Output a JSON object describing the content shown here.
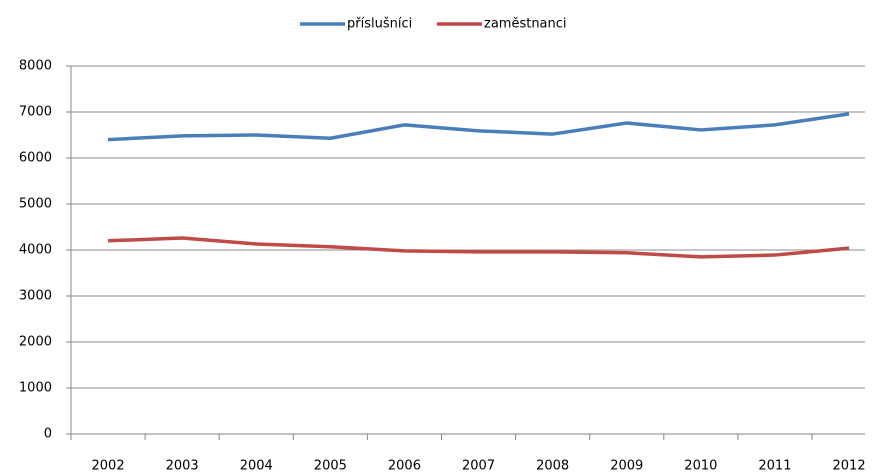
{
  "chart_data": {
    "type": "line",
    "categories": [
      "2002",
      "2003",
      "2004",
      "2005",
      "2006",
      "2007",
      "2008",
      "2009",
      "2010",
      "2011",
      "2012"
    ],
    "series": [
      {
        "name": "příslušníci",
        "color": "#4a7ebb",
        "values": [
          6400,
          6480,
          6500,
          6430,
          6720,
          6590,
          6520,
          6760,
          6610,
          6720,
          6960
        ]
      },
      {
        "name": "zaměstnanci",
        "color": "#be4b48",
        "values": [
          4200,
          4260,
          4130,
          4070,
          3980,
          3960,
          3960,
          3940,
          3850,
          3890,
          4040
        ]
      }
    ],
    "ylim": [
      0,
      8000
    ],
    "yticks": [
      0,
      1000,
      2000,
      3000,
      4000,
      5000,
      6000,
      7000,
      8000
    ],
    "grid": true,
    "legend": "top"
  }
}
